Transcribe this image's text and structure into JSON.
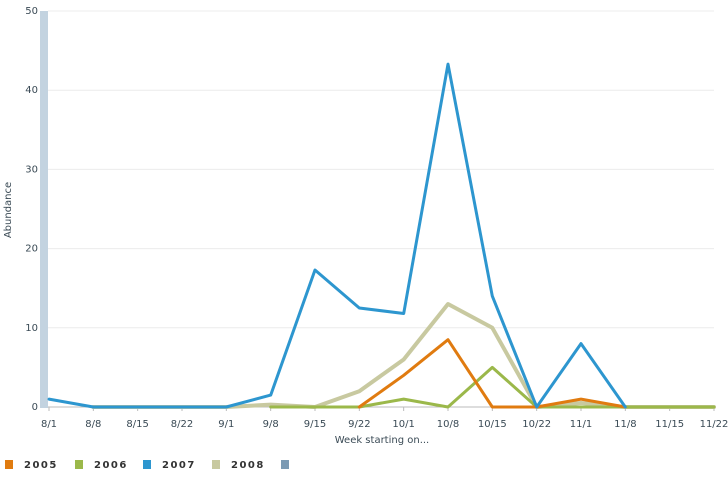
{
  "chart_data": {
    "type": "line",
    "x_label": "Week starting on...",
    "y_label": "Abundance",
    "categories": [
      "8/1",
      "8/8",
      "8/15",
      "8/22",
      "9/1",
      "9/8",
      "9/15",
      "9/22",
      "10/1",
      "10/8",
      "10/15",
      "10/22",
      "11/1",
      "11/8",
      "11/15",
      "11/22"
    ],
    "series": [
      {
        "name": "2005",
        "color": "#e07b10",
        "values": [
          null,
          null,
          null,
          null,
          null,
          null,
          null,
          0,
          4,
          8.5,
          0,
          0,
          1,
          0,
          null,
          null
        ]
      },
      {
        "name": "2006",
        "color": "#9bb84a",
        "values": [
          null,
          null,
          null,
          null,
          null,
          0,
          0,
          0,
          1,
          0,
          5,
          0,
          0,
          0,
          0,
          0
        ]
      },
      {
        "name": "2007",
        "color": "#2d96cf",
        "values": [
          1,
          0,
          0,
          0,
          0,
          1.5,
          17.3,
          12.5,
          11.8,
          43.3,
          14,
          0,
          8,
          0,
          null,
          null
        ]
      },
      {
        "name": "2008",
        "color": "#c8c9a0",
        "values": [
          null,
          0,
          0,
          0,
          0,
          0.3,
          0,
          2,
          6,
          13,
          10,
          0,
          0.5,
          0,
          0,
          0
        ]
      }
    ],
    "ylim": [
      0,
      50
    ],
    "yticks": [
      0,
      10,
      20,
      30,
      40,
      50
    ],
    "grid": true
  }
}
